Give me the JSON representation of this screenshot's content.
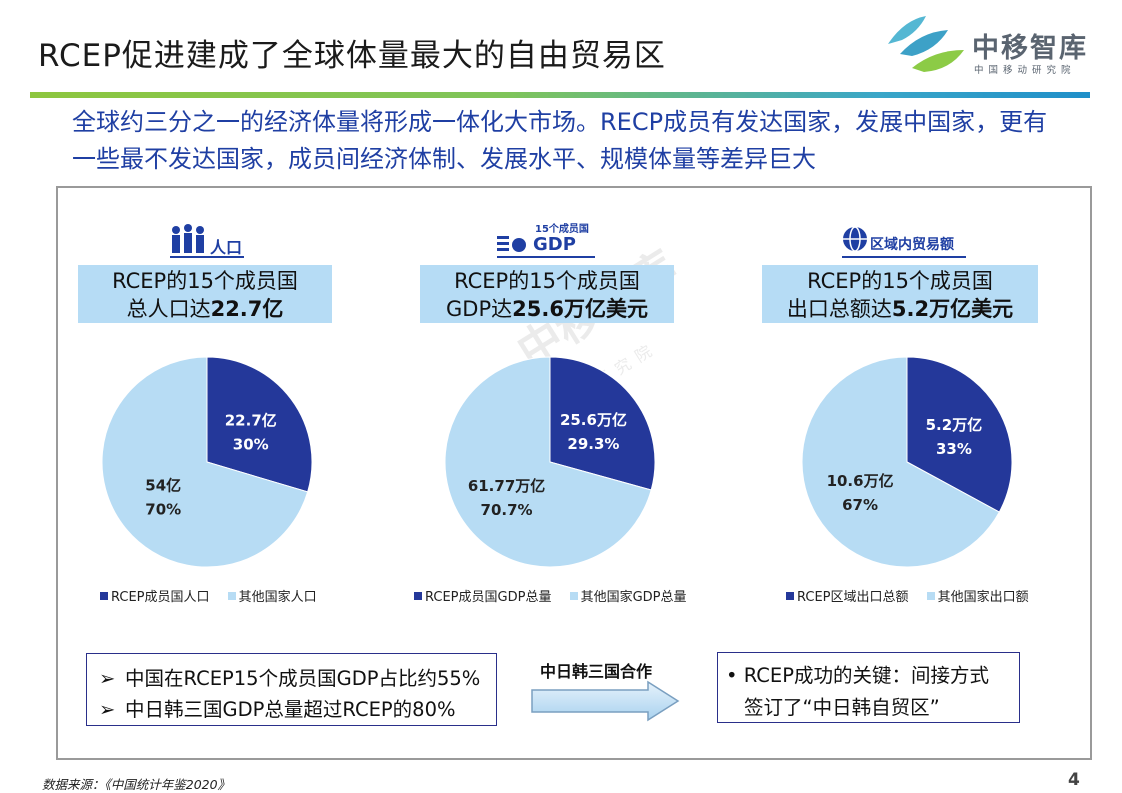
{
  "header": {
    "title": "RCEP促进建成了全球体量最大的自由贸易区",
    "logo_name": "中移智库",
    "logo_subtitle": "中国移动研究院"
  },
  "intro": "全球约三分之一的经济体量将形成一体化大市场。RECP成员有发达国家，发展中国家，更有一些最不发达国家，成员间经济体制、发展水平、规模体量等差异巨大",
  "watermark": {
    "name": "中移智库",
    "sub": "移动研究院"
  },
  "colors": {
    "dark_blue": "#24389a",
    "light_blue": "#b7dcf4",
    "box_bg": "#b6dcf5",
    "text_blue": "#1f3fa3"
  },
  "columns": [
    {
      "icon_name": "people-icon",
      "icon_label": "人口",
      "icon_top": "",
      "line1": "RCEP的15个成员国",
      "line2_prefix": "总人口达",
      "line2_bold": "22.7亿"
    },
    {
      "icon_name": "gdp-icon",
      "icon_label": "GDP",
      "icon_top": "15个成员国",
      "line1": "RCEP的15个成员国",
      "line2_prefix": "GDP达",
      "line2_bold": "25.6万亿美元"
    },
    {
      "icon_name": "globe-trade-icon",
      "icon_label": "区域内贸易额",
      "icon_top": "",
      "line1": "RCEP的15个成员国",
      "line2_prefix": "出口总额达",
      "line2_bold": "5.2万亿美元"
    }
  ],
  "chart_data": [
    {
      "type": "pie",
      "title": "",
      "labels": [
        "RCEP成员国人口",
        "其他国家人口"
      ],
      "values": [
        22.7,
        54
      ],
      "value_labels": [
        "22.7亿",
        "54亿"
      ],
      "percent_labels": [
        "30%",
        "70%"
      ],
      "colors": [
        "#24389a",
        "#b7dcf4"
      ],
      "legend": "bottom"
    },
    {
      "type": "pie",
      "title": "",
      "labels": [
        "RCEP成员国GDP总量",
        "其他国家GDP总量"
      ],
      "values": [
        25.6,
        61.77
      ],
      "value_labels": [
        "25.6万亿",
        "61.77万亿"
      ],
      "percent_labels": [
        "29.3%",
        "70.7%"
      ],
      "colors": [
        "#24389a",
        "#b7dcf4"
      ],
      "legend": "bottom"
    },
    {
      "type": "pie",
      "title": "",
      "labels": [
        "RCEP区域出口总额",
        "其他国家出口额"
      ],
      "values": [
        5.2,
        10.6
      ],
      "value_labels": [
        "5.2万亿",
        "10.6万亿"
      ],
      "percent_labels": [
        "33%",
        "67%"
      ],
      "colors": [
        "#24389a",
        "#b7dcf4"
      ],
      "legend": "bottom"
    }
  ],
  "bullets": [
    "中国在RCEP15个成员国GDP占比约55%",
    "中日韩三国GDP总量超过RCEP的80%"
  ],
  "bullet_marker": "➢",
  "cooperation_label": "中日韩三国合作",
  "key_box": {
    "bullet": "•",
    "line1": "RCEP成功的关键：间接方式",
    "line2": "签订了“中日韩自贸区”"
  },
  "footer": {
    "source": "数据来源：《中国统计年鉴2020》",
    "page": "4"
  }
}
